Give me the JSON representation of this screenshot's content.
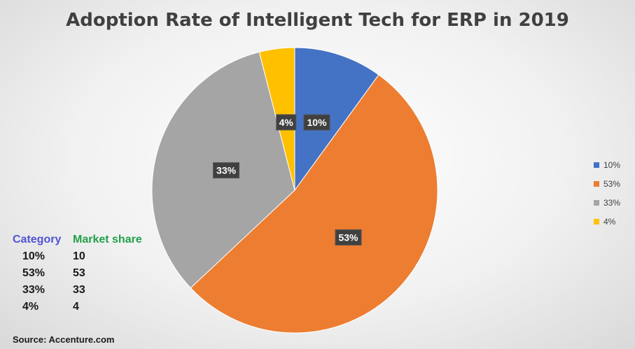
{
  "chart_data": {
    "type": "pie",
    "title": "Adoption Rate of Intelligent Tech for ERP in 2019",
    "categories": [
      "10%",
      "53%",
      "33%",
      "4%"
    ],
    "values": [
      10,
      53,
      33,
      4
    ],
    "data_labels": [
      "10%",
      "53%",
      "33%",
      "4%"
    ],
    "colors": [
      "#4472c4",
      "#ed7d31",
      "#a5a5a5",
      "#ffc000"
    ],
    "legend_position": "right",
    "legend": [
      "10%",
      "53%",
      "33%",
      "4%"
    ]
  },
  "table": {
    "header_category": "Category",
    "header_share": "Market share",
    "rows": [
      {
        "category": "10%",
        "share": "10"
      },
      {
        "category": "53%",
        "share": "53"
      },
      {
        "category": "33%",
        "share": "33"
      },
      {
        "category": "4%",
        "share": "4"
      }
    ]
  },
  "source": "Source: Accenture.com"
}
